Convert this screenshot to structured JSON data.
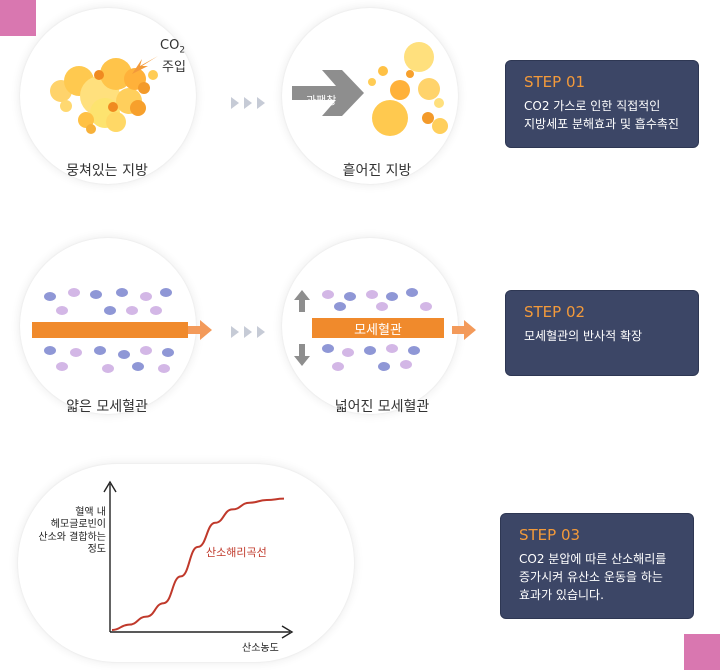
{
  "row1": {
    "co2_label": "CO",
    "co2_sub": "2",
    "injection_label": "주입",
    "left_caption": "뭉쳐있는 지방",
    "expansion_label": "과팽창",
    "right_caption": "흩어진 지방"
  },
  "row2": {
    "left_caption": "얇은 모세혈관",
    "vessel_label": "모세혈관",
    "right_caption": "넓어진 모세혈관"
  },
  "chart": {
    "ylabel_lines": [
      "혈액 내",
      "헤모글로빈이",
      "산소와 결합하는",
      "정도"
    ],
    "curve_label": "산소해리곡선",
    "xlabel": "산소농도"
  },
  "chart_data": {
    "type": "line",
    "title": "",
    "xlabel": "산소농도",
    "ylabel": "혈액 내 헤모글로빈이 산소와 결합하는 정도",
    "series": [
      {
        "name": "산소해리곡선",
        "x": [
          0,
          0.1,
          0.2,
          0.3,
          0.4,
          0.5,
          0.6,
          0.7,
          0.8,
          0.9,
          1.0
        ],
        "y": [
          0.0,
          0.04,
          0.1,
          0.2,
          0.4,
          0.62,
          0.8,
          0.9,
          0.95,
          0.97,
          0.98
        ]
      }
    ]
  },
  "steps": [
    {
      "title": "STEP 01",
      "body": "CO2 가스로 인한 직접적인\n지방세포 분해효과 및 흡수촉진"
    },
    {
      "title": "STEP 02",
      "body": "모세혈관의 반사적 확장"
    },
    {
      "title": "STEP 03",
      "body": "CO2 분압에 따른 산소해리를\n증가시켜 유산소 운동을 하는\n효과가 있습니다."
    }
  ],
  "colors": {
    "accent_orange": "#f08a2c",
    "step_bg": "#3c4666",
    "step_title": "#f39a3a",
    "corner_pink": "#d977b0",
    "curve_red": "#c0392b"
  }
}
